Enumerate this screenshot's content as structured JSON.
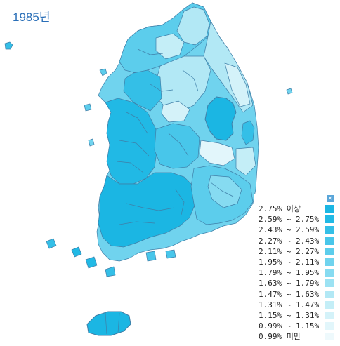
{
  "map_title": "1985년",
  "legend": {
    "items": [
      {
        "label": "2.75% 이상",
        "color": "#1bb6e3"
      },
      {
        "label": "2.59% ~ 2.75%",
        "color": "#21b9e5"
      },
      {
        "label": "2.43% ~ 2.59%",
        "color": "#34bfe7"
      },
      {
        "label": "2.27% ~ 2.43%",
        "color": "#48c6ea"
      },
      {
        "label": "2.11% ~ 2.27%",
        "color": "#5ccdec"
      },
      {
        "label": "1.95% ~ 2.11%",
        "color": "#70d3ee"
      },
      {
        "label": "1.79% ~ 1.95%",
        "color": "#86dbf1"
      },
      {
        "label": "1.63% ~ 1.79%",
        "color": "#9ce2f3"
      },
      {
        "label": "1.47% ~ 1.63%",
        "color": "#b2e8f5"
      },
      {
        "label": "1.31% ~ 1.47%",
        "color": "#c4eef7"
      },
      {
        "label": "1.15% ~ 1.31%",
        "color": "#d4f2f9"
      },
      {
        "label": "0.99% ~ 1.15%",
        "color": "#e2f6fb"
      },
      {
        "label": "0.99% 미만",
        "color": "#eef9fc"
      }
    ]
  },
  "colors": {
    "border": "#3f7fa8",
    "dark_region": "#1bb6e3",
    "mid_region": "#5ccdec",
    "light_region": "#b2e8f5",
    "pale_region": "#d9f0fa"
  },
  "icons": {
    "legend_close": "close-icon"
  }
}
